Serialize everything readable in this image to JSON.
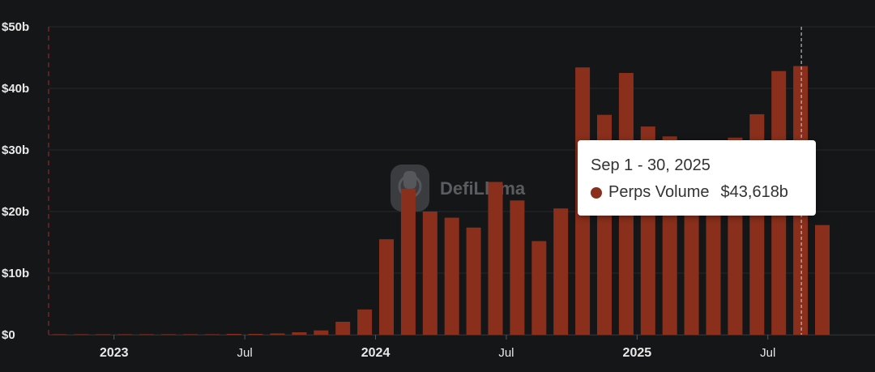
{
  "chart_data": {
    "type": "bar",
    "series": [
      {
        "name": "Perps Volume",
        "color": "#892f1c",
        "x": [
          "2022-11",
          "2022-12",
          "2023-01",
          "2023-02",
          "2023-03",
          "2023-04",
          "2023-05",
          "2023-06",
          "2023-07",
          "2023-08",
          "2023-09",
          "2023-10",
          "2023-11",
          "2023-12",
          "2024-01",
          "2024-02",
          "2024-03",
          "2024-04",
          "2024-05",
          "2024-06",
          "2024-07",
          "2024-08",
          "2024-09",
          "2024-10",
          "2024-11",
          "2024-12",
          "2025-01",
          "2025-02",
          "2025-03",
          "2025-04",
          "2025-05",
          "2025-06",
          "2025-07",
          "2025-08",
          "2025-09",
          "2025-10"
        ],
        "values": [
          0,
          0,
          0,
          0,
          0,
          0,
          0,
          0,
          0.05,
          0.1,
          0.2,
          0.4,
          0.7,
          2.1,
          4.1,
          15.5,
          23.7,
          20.0,
          19.0,
          17.4,
          24.8,
          21.8,
          15.2,
          20.5,
          43.4,
          35.7,
          42.5,
          33.8,
          32.2,
          30.0,
          29.0,
          32.0,
          35.8,
          42.8,
          43.618,
          17.8
        ]
      }
    ],
    "y_axis": {
      "ticks": [
        0,
        10,
        20,
        30,
        40,
        50
      ],
      "tick_labels": [
        "$0",
        "$10b",
        "$20b",
        "$30b",
        "$40b",
        "$50b"
      ],
      "ylim": [
        0,
        50
      ]
    },
    "x_axis": {
      "ticks": [
        {
          "at": "2023-01",
          "label": "2023",
          "major": true
        },
        {
          "at": "2023-07",
          "label": "Jul",
          "major": false
        },
        {
          "at": "2024-01",
          "label": "2024",
          "major": true
        },
        {
          "at": "2024-07",
          "label": "Jul",
          "major": false
        },
        {
          "at": "2025-01",
          "label": "2025",
          "major": true
        },
        {
          "at": "2025-07",
          "label": "Jul",
          "major": false
        }
      ]
    },
    "grid": true,
    "highlighted": "2025-09"
  },
  "watermark": "DefiLlama",
  "tooltip": {
    "date": "Sep 1 - 30, 2025",
    "series_label": "Perps Volume",
    "value": "$43,618b",
    "dot_color": "#892f1c"
  }
}
